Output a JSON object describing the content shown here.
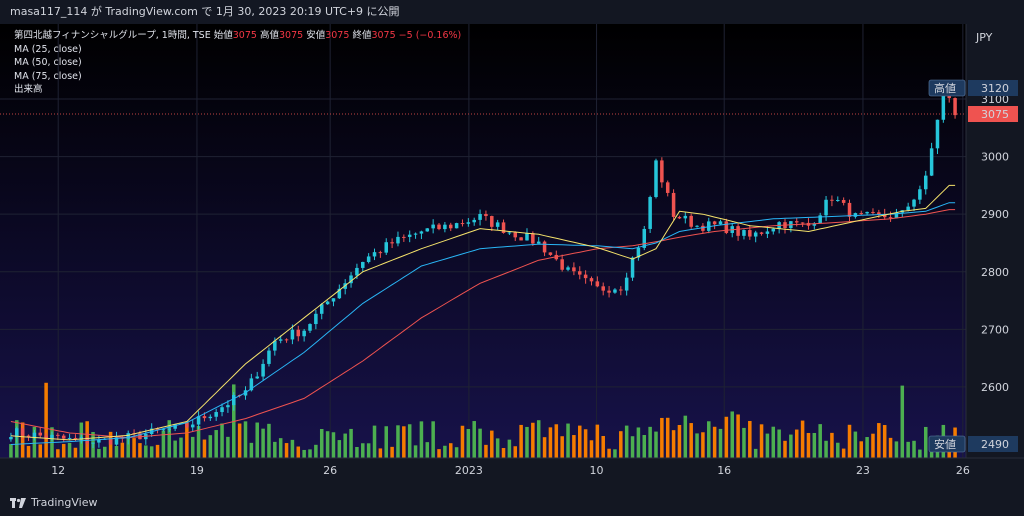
{
  "header": {
    "publish_line": "masa117_114 が TradingView.com で 1月 30, 2023 20:19 UTC+9 に公開"
  },
  "legend": {
    "symbol_line": "第四北越フィナンシャルグループ, 1時間, TSE",
    "open_label": "始値",
    "open_value": "3075",
    "high_label": "高値",
    "high_value": "3075",
    "low_label": "安値",
    "low_value": "3075",
    "close_label": "終値",
    "close_value": "3075",
    "change": "−5 (−0.16%)",
    "ma25": "MA (25, close)",
    "ma50": "MA (50, close)",
    "ma75": "MA (75, close)",
    "volume": "出来高"
  },
  "price_scale": {
    "currency": "JPY",
    "high_tag_label": "高値",
    "high_tag_value": "3120",
    "last_price": "3075",
    "low_tag_label": "安値",
    "low_tag_value": "2490"
  },
  "colors": {
    "background": "#131722",
    "up": "#26c6da",
    "down": "#ef5350",
    "vol_up": "#4caf50",
    "vol_down": "#f57c00",
    "ma25": "#f5e36b",
    "ma50": "#29b6f6",
    "ma75": "#ef5350"
  },
  "brand": "TradingView",
  "chart_data": {
    "type": "candlestick",
    "x_tick_labels": [
      "12",
      "19",
      "26",
      "2023",
      "10",
      "16",
      "23",
      "26"
    ],
    "y_tick_labels": [
      "2600",
      "2700",
      "2800",
      "2900",
      "3000",
      "3100"
    ],
    "ylim": [
      2480,
      3140
    ],
    "price_anchors": [
      [
        0,
        2522
      ],
      [
        5,
        2515
      ],
      [
        10,
        2508
      ],
      [
        15,
        2505
      ],
      [
        20,
        2512
      ],
      [
        25,
        2522
      ],
      [
        30,
        2532
      ],
      [
        35,
        2560
      ],
      [
        40,
        2590
      ],
      [
        45,
        2680
      ],
      [
        50,
        2700
      ],
      [
        55,
        2760
      ],
      [
        60,
        2820
      ],
      [
        65,
        2850
      ],
      [
        70,
        2870
      ],
      [
        75,
        2880
      ],
      [
        80,
        2895
      ],
      [
        85,
        2870
      ],
      [
        90,
        2850
      ],
      [
        95,
        2800
      ],
      [
        100,
        2770
      ],
      [
        104,
        2775
      ],
      [
        108,
        2870
      ],
      [
        110,
        2990
      ],
      [
        113,
        2900
      ],
      [
        117,
        2880
      ],
      [
        121,
        2880
      ],
      [
        126,
        2860
      ],
      [
        131,
        2885
      ],
      [
        136,
        2880
      ],
      [
        140,
        2930
      ],
      [
        144,
        2895
      ],
      [
        148,
        2895
      ],
      [
        152,
        2900
      ],
      [
        156,
        2960
      ],
      [
        159,
        3120
      ],
      [
        161,
        3075
      ]
    ],
    "ma25": [
      [
        0,
        2515
      ],
      [
        10,
        2508
      ],
      [
        20,
        2516
      ],
      [
        30,
        2540
      ],
      [
        40,
        2640
      ],
      [
        50,
        2720
      ],
      [
        60,
        2800
      ],
      [
        70,
        2840
      ],
      [
        80,
        2875
      ],
      [
        90,
        2865
      ],
      [
        100,
        2842
      ],
      [
        106,
        2822
      ],
      [
        110,
        2840
      ],
      [
        114,
        2905
      ],
      [
        118,
        2900
      ],
      [
        126,
        2880
      ],
      [
        136,
        2870
      ],
      [
        146,
        2892
      ],
      [
        152,
        2905
      ],
      [
        156,
        2910
      ],
      [
        160,
        2950
      ]
    ],
    "ma50": [
      [
        0,
        2500
      ],
      [
        10,
        2505
      ],
      [
        20,
        2512
      ],
      [
        30,
        2538
      ],
      [
        40,
        2590
      ],
      [
        50,
        2660
      ],
      [
        60,
        2745
      ],
      [
        70,
        2810
      ],
      [
        80,
        2840
      ],
      [
        90,
        2848
      ],
      [
        100,
        2845
      ],
      [
        106,
        2840
      ],
      [
        110,
        2850
      ],
      [
        114,
        2870
      ],
      [
        120,
        2880
      ],
      [
        130,
        2892
      ],
      [
        140,
        2896
      ],
      [
        150,
        2900
      ],
      [
        156,
        2905
      ],
      [
        160,
        2920
      ]
    ],
    "ma75": [
      [
        0,
        2540
      ],
      [
        10,
        2520
      ],
      [
        20,
        2512
      ],
      [
        30,
        2520
      ],
      [
        40,
        2545
      ],
      [
        50,
        2580
      ],
      [
        60,
        2645
      ],
      [
        70,
        2720
      ],
      [
        80,
        2780
      ],
      [
        90,
        2820
      ],
      [
        100,
        2840
      ],
      [
        106,
        2845
      ],
      [
        110,
        2852
      ],
      [
        114,
        2860
      ],
      [
        120,
        2870
      ],
      [
        130,
        2880
      ],
      [
        140,
        2885
      ],
      [
        150,
        2892
      ],
      [
        156,
        2900
      ],
      [
        160,
        2908
      ]
    ]
  }
}
